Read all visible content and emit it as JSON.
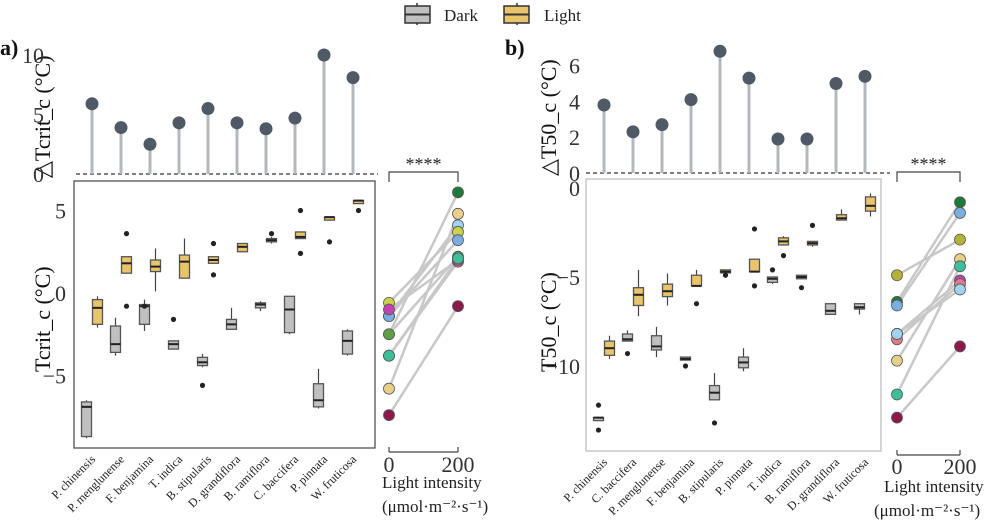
{
  "legend": {
    "items": [
      {
        "label": "Dark",
        "color": "#c0c0c0"
      },
      {
        "label": "Light",
        "color": "#e8c46a"
      }
    ]
  },
  "chart_data": [
    {
      "panel": "a)",
      "type": "lollipop",
      "ylabel": "△Tcrit_c (°C)",
      "ylim": [
        0,
        10.5
      ],
      "yticks": [
        0,
        5,
        10
      ],
      "categories": [
        "P. chinensis",
        "P. menglunense",
        "F. benjamina",
        "T. indica",
        "B. stipularis",
        "D. grandiflora",
        "B. ramiflora",
        "C. baccifera",
        "P. pinnata",
        "W. fruticosa"
      ],
      "values": [
        5.9,
        3.9,
        2.5,
        4.3,
        5.5,
        4.3,
        3.8,
        4.7,
        10.0,
        8.1
      ]
    },
    {
      "panel": "a)",
      "type": "box",
      "ylabel": "Tcrit_c (°C)",
      "ylim": [
        -9.4,
        6.8
      ],
      "yticks": [
        -5,
        0,
        5
      ],
      "categories": [
        "P. chinensis",
        "P. menglunense",
        "F. benjamina",
        "T. indica",
        "B. stipularis",
        "D. grandiflora",
        "B. ramiflora",
        "C. baccifera",
        "P. pinnata",
        "W. fruticosa"
      ],
      "series": [
        {
          "name": "Dark",
          "boxes": [
            {
              "min": -8.8,
              "q1": -8.7,
              "median": -6.9,
              "q3": -6.6,
              "max": -6.5,
              "outliers": []
            },
            {
              "min": -3.8,
              "q1": -3.6,
              "median": -3.1,
              "q3": -2.0,
              "max": -1.5,
              "outliers": []
            },
            {
              "min": -2.3,
              "q1": -1.9,
              "median": -0.8,
              "q3": -0.7,
              "max": -0.4,
              "outliers": [
                -0.8
              ]
            },
            {
              "min": -3.4,
              "q1": -3.4,
              "median": -3.1,
              "q3": -2.9,
              "max": -2.9,
              "outliers": [
                -1.6
              ]
            },
            {
              "min": -4.5,
              "q1": -4.4,
              "median": -4.2,
              "q3": -3.9,
              "max": -3.7,
              "outliers": [
                -5.6
              ]
            },
            {
              "min": -2.2,
              "q1": -2.2,
              "median": -1.9,
              "q3": -1.6,
              "max": -0.9,
              "outliers": []
            },
            {
              "min": -1.1,
              "q1": -0.9,
              "median": -0.7,
              "q3": -0.6,
              "max": -0.5,
              "outliers": []
            },
            {
              "min": -2.5,
              "q1": -2.4,
              "median": -1.0,
              "q3": -0.2,
              "max": -0.2,
              "outliers": []
            },
            {
              "min": -7.0,
              "q1": -6.9,
              "median": -6.5,
              "q3": -5.5,
              "max": -4.6,
              "outliers": []
            },
            {
              "min": -3.8,
              "q1": -3.7,
              "median": -2.9,
              "q3": -2.3,
              "max": -2.2,
              "outliers": []
            }
          ]
        },
        {
          "name": "Light",
          "boxes": [
            {
              "min": -2.1,
              "q1": -1.9,
              "median": -0.9,
              "q3": -0.4,
              "max": -0.2,
              "outliers": []
            },
            {
              "min": 1.2,
              "q1": 1.2,
              "median": 1.8,
              "q3": 2.2,
              "max": 2.2,
              "outliers": [
                3.6,
                -0.8
              ]
            },
            {
              "min": 0.1,
              "q1": 1.3,
              "median": 1.6,
              "q3": 2.0,
              "max": 2.7,
              "outliers": []
            },
            {
              "min": 0.9,
              "q1": 0.9,
              "median": 1.9,
              "q3": 2.3,
              "max": 3.3,
              "outliers": []
            },
            {
              "min": 1.8,
              "q1": 1.8,
              "median": 2.0,
              "q3": 2.2,
              "max": 2.2,
              "outliers": [
                3.0,
                1.1
              ]
            },
            {
              "min": 2.5,
              "q1": 2.5,
              "median": 2.8,
              "q3": 3.0,
              "max": 3.0,
              "outliers": []
            },
            {
              "min": 3.0,
              "q1": 3.1,
              "median": 3.2,
              "q3": 3.3,
              "max": 3.4,
              "outliers": [
                3.6
              ]
            },
            {
              "min": 3.3,
              "q1": 3.3,
              "median": 3.4,
              "q3": 3.7,
              "max": 3.7,
              "outliers": [
                5.0,
                2.4
              ]
            },
            {
              "min": 4.6,
              "q1": 4.6,
              "median": 4.6,
              "q3": 4.6,
              "max": 4.6,
              "outliers": [
                3.1
              ]
            },
            {
              "min": 5.6,
              "q1": 5.6,
              "median": 5.6,
              "q3": 5.6,
              "max": 5.6,
              "outliers": [
                5.0
              ]
            }
          ]
        }
      ]
    },
    {
      "panel": "a)",
      "type": "paired-scatter",
      "xlabel": "Light intensity (μmol·m⁻²·s⁻¹)",
      "xticks": [
        0,
        200
      ],
      "significance": "****",
      "pairs": [
        {
          "color": "#1f7a3a",
          "x0": -2.5,
          "x200": 6.1
        },
        {
          "color": "#e8d08a",
          "x0": -5.8,
          "x200": 4.8
        },
        {
          "color": "#9fd3f0",
          "x0": -1.4,
          "x200": 4.1
        },
        {
          "color": "#c9d34a",
          "x0": -0.6,
          "x200": 3.7
        },
        {
          "color": "#7aaee0",
          "x0": -1.4,
          "x200": 3.2
        },
        {
          "color": "#5f9e4a",
          "x0": -2.5,
          "x200": 2.2
        },
        {
          "color": "#e07c8a",
          "x0": -3.8,
          "x200": 1.9
        },
        {
          "color": "#8b1a4a",
          "x0": -7.4,
          "x200": -0.8
        },
        {
          "color": "#c244b0",
          "x0": -1.0,
          "x200": 2.0
        },
        {
          "color": "#3cbf9a",
          "x0": -3.8,
          "x200": 2.1
        }
      ]
    },
    {
      "panel": "b)",
      "type": "lollipop",
      "ylabel": "△T50_c (°C)",
      "ylim": [
        0,
        7.2
      ],
      "yticks": [
        0,
        2,
        4,
        6
      ],
      "categories": [
        "P. chinensis",
        "C. baccifera",
        "P. menglunense",
        "F. benjamina",
        "B. stipularis",
        "P. pinnata",
        "T. indica",
        "B. ramiflora",
        "D. grandiflora",
        "W. fruticosa"
      ],
      "values": [
        3.8,
        2.3,
        2.7,
        4.1,
        6.8,
        5.3,
        1.9,
        1.9,
        5.0,
        5.4
      ]
    },
    {
      "panel": "b)",
      "type": "box",
      "ylabel": "T50_c (°C)",
      "ylim": [
        -14.5,
        0.4
      ],
      "yticks": [
        -10,
        -5,
        0
      ],
      "categories": [
        "P. chinensis",
        "C. baccifera",
        "P. menglunense",
        "F. benjamina",
        "B. stipularis",
        "P. pinnata",
        "T. indica",
        "B. ramiflora",
        "D. grandiflora",
        "W. fruticosa"
      ],
      "series": [
        {
          "name": "Dark",
          "boxes": [
            {
              "min": -12.9,
              "q1": -12.9,
              "median": -12.9,
              "q3": -12.9,
              "max": -12.9,
              "outliers": [
                -12.2,
                -13.6
              ]
            },
            {
              "min": -8.6,
              "q1": -8.6,
              "median": -8.5,
              "q3": -8.2,
              "max": -8.0,
              "outliers": [
                -9.3
              ]
            },
            {
              "min": -9.5,
              "q1": -9.1,
              "median": -8.9,
              "q3": -8.3,
              "max": -7.8,
              "outliers": []
            },
            {
              "min": -9.6,
              "q1": -9.6,
              "median": -9.6,
              "q3": -9.5,
              "max": -9.5,
              "outliers": [
                -10.0
              ]
            },
            {
              "min": -11.9,
              "q1": -11.9,
              "median": -11.5,
              "q3": -11.1,
              "max": -10.4,
              "outliers": [
                -13.2
              ]
            },
            {
              "min": -10.3,
              "q1": -10.1,
              "median": -9.8,
              "q3": -9.5,
              "max": -9.0,
              "outliers": []
            },
            {
              "min": -5.4,
              "q1": -5.3,
              "median": -5.1,
              "q3": -5.0,
              "max": -5.0,
              "outliers": [
                -4.6
              ]
            },
            {
              "min": -5.1,
              "q1": -5.1,
              "median": -5.0,
              "q3": -4.9,
              "max": -4.9,
              "outliers": [
                -5.6
              ]
            },
            {
              "min": -7.1,
              "q1": -7.1,
              "median": -6.9,
              "q3": -6.5,
              "max": -6.5,
              "outliers": []
            },
            {
              "min": -7.1,
              "q1": -6.8,
              "median": -6.7,
              "q3": -6.5,
              "max": -6.5,
              "outliers": []
            }
          ]
        },
        {
          "name": "Light",
          "boxes": [
            {
              "min": -9.6,
              "q1": -9.4,
              "median": -9.0,
              "q3": -8.6,
              "max": -8.3,
              "outliers": []
            },
            {
              "min": -7.2,
              "q1": -6.6,
              "median": -6.0,
              "q3": -5.6,
              "max": -4.6,
              "outliers": []
            },
            {
              "min": -6.6,
              "q1": -6.1,
              "median": -5.8,
              "q3": -5.4,
              "max": -4.8,
              "outliers": []
            },
            {
              "min": -5.5,
              "q1": -5.5,
              "median": -5.5,
              "q3": -4.9,
              "max": -4.6,
              "outliers": [
                -6.5
              ]
            },
            {
              "min": -4.7,
              "q1": -4.7,
              "median": -4.7,
              "q3": -4.6,
              "max": -4.6,
              "outliers": [
                -4.9
              ]
            },
            {
              "min": -4.7,
              "q1": -4.7,
              "median": -4.7,
              "q3": -4.0,
              "max": -4.0,
              "outliers": [
                -2.3,
                -5.5
              ]
            },
            {
              "min": -3.2,
              "q1": -3.2,
              "median": -3.0,
              "q3": -2.8,
              "max": -2.7,
              "outliers": [
                -3.8
              ]
            },
            {
              "min": -3.3,
              "q1": -3.2,
              "median": -3.1,
              "q3": -3.0,
              "max": -3.0,
              "outliers": [
                -2.1
              ]
            },
            {
              "min": -1.8,
              "q1": -1.8,
              "median": -1.7,
              "q3": -1.5,
              "max": -1.2,
              "outliers": []
            },
            {
              "min": -1.6,
              "q1": -1.3,
              "median": -1.0,
              "q3": -0.5,
              "max": -0.3,
              "outliers": []
            }
          ]
        }
      ]
    },
    {
      "panel": "b)",
      "type": "paired-scatter",
      "xlabel": "Light intensity (μmol·m⁻²·s⁻¹)",
      "xticks": [
        0,
        200
      ],
      "significance": "****",
      "pairs": [
        {
          "color": "#1f7a3a",
          "x0": -6.4,
          "x200": -0.8
        },
        {
          "color": "#7aaee0",
          "x0": -6.6,
          "x200": -1.4
        },
        {
          "color": "#b5b23a",
          "x0": -4.9,
          "x200": -2.9
        },
        {
          "color": "#e8d08a",
          "x0": -9.7,
          "x200": -4.0
        },
        {
          "color": "#3cbf9a",
          "x0": -11.6,
          "x200": -4.4
        },
        {
          "color": "#c244b0",
          "x0": -8.2,
          "x200": -5.2
        },
        {
          "color": "#e07c8a",
          "x0": -8.5,
          "x200": -5.4
        },
        {
          "color": "#9fd3f0",
          "x0": -8.2,
          "x200": -5.7
        },
        {
          "color": "#8b1a4a",
          "x0": -12.9,
          "x200": -8.9
        }
      ]
    }
  ]
}
